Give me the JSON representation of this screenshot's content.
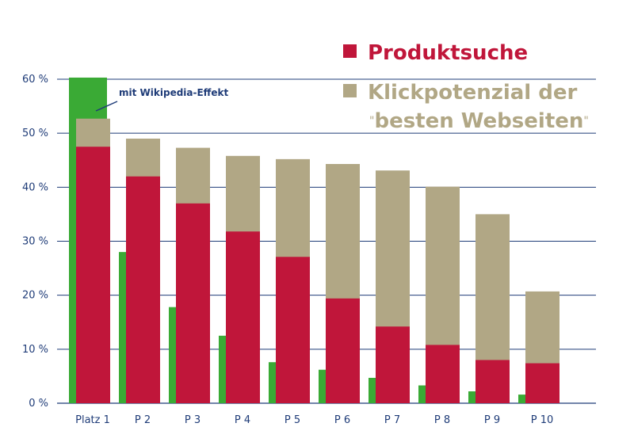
{
  "chart_data": {
    "type": "bar",
    "categories": [
      "Platz 1",
      "P 2",
      "P 3",
      "P 4",
      "P 5",
      "P 6",
      "P 7",
      "P 8",
      "P 9",
      "P 10"
    ],
    "y_ticks": [
      "0 %",
      "10 %",
      "20 %",
      "30 %",
      "40 %",
      "50 %",
      "60 %"
    ],
    "ylim": [
      0,
      60
    ],
    "series": [
      {
        "name": "Produktsuche",
        "color": "#c0163a",
        "values": [
          47.5,
          42.0,
          37.0,
          31.8,
          27.1,
          19.4,
          14.2,
          10.8,
          8.0,
          7.4
        ]
      },
      {
        "name": "Klickpotenzial der \"besten Webseiten\"",
        "color": "#b1a785",
        "values": [
          52.7,
          49.0,
          47.3,
          45.8,
          45.2,
          44.3,
          43.1,
          40.1,
          35.0,
          20.7
        ]
      },
      {
        "color": "#3aaa35",
        "values": [
          60.3,
          28.0,
          17.8,
          12.5,
          7.6,
          6.2,
          4.7,
          3.3,
          2.2,
          1.6
        ]
      }
    ],
    "annotation": "mit Wikipedia-Effekt",
    "grid": true
  },
  "legend": {
    "item1": "Produktsuche",
    "item2_line1": "Klickpotenzial der",
    "item2_line2": "besten Webseiten",
    "quote_open": "\"",
    "quote_close": "\""
  }
}
